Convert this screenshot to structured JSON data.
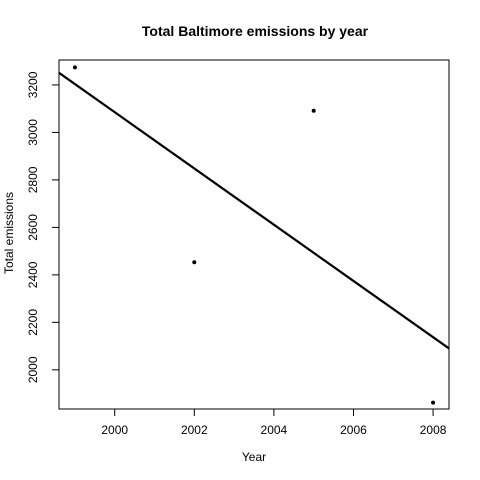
{
  "chart_data": {
    "type": "scatter",
    "title": "Total Baltimore emissions by year",
    "xlabel": "Year",
    "ylabel": "Total emissions",
    "xlim": [
      1998.6,
      2008.4
    ],
    "ylim": [
      1835,
      3305
    ],
    "x_ticks": [
      2000,
      2002,
      2004,
      2006,
      2008
    ],
    "y_ticks": [
      2000,
      2200,
      2400,
      2600,
      2800,
      3000,
      3200
    ],
    "grid": false,
    "points": [
      {
        "x": 1999,
        "y": 3274
      },
      {
        "x": 2002,
        "y": 2453
      },
      {
        "x": 2005,
        "y": 3091
      },
      {
        "x": 2008,
        "y": 1862
      }
    ],
    "trend_line": {
      "x": [
        1998.6,
        2008.4
      ],
      "y": [
        3251,
        2090
      ]
    }
  }
}
